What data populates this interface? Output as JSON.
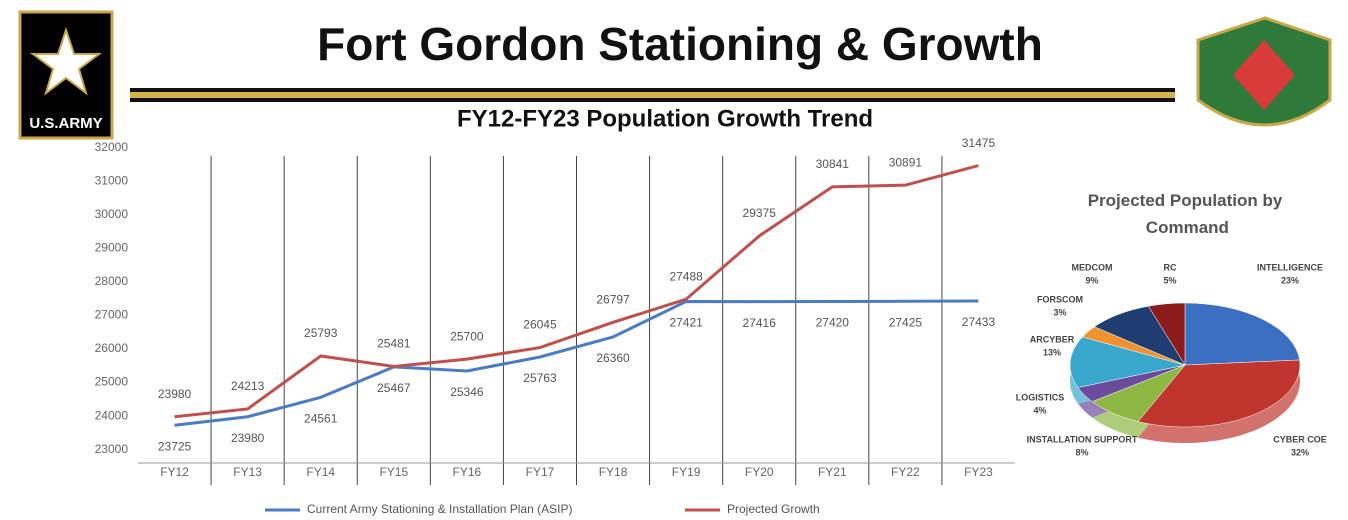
{
  "header": {
    "title": "Fort Gordon Stationing & Growth",
    "logo_text": "U.S.ARMY"
  },
  "chart_data": [
    {
      "type": "line",
      "title": "FY12-FY23 Population Growth Trend",
      "categories": [
        "FY12",
        "FY13",
        "FY14",
        "FY15",
        "FY16",
        "FY17",
        "FY18",
        "FY19",
        "FY20",
        "FY21",
        "FY22",
        "FY23"
      ],
      "series": [
        {
          "name": "Current Army Stationing & Installation Plan (ASIP)",
          "color": "#4a7cc4",
          "values": [
            23725,
            23980,
            24561,
            25467,
            25346,
            25763,
            26360,
            27421,
            27416,
            27420,
            27425,
            27433
          ]
        },
        {
          "name": "Projected Growth",
          "color": "#c0504d",
          "values": [
            23980,
            24213,
            25793,
            25481,
            25700,
            26045,
            26797,
            27488,
            29375,
            30841,
            30891,
            31475
          ]
        }
      ],
      "ylim": [
        22600,
        32000
      ],
      "yticks": [
        23000,
        24000,
        25000,
        26000,
        27000,
        28000,
        29000,
        30000,
        31000,
        32000
      ],
      "grid": false,
      "legend": "bottom"
    },
    {
      "type": "pie",
      "title": "Projected Population by Command",
      "categories": [
        "INTELLIGENCE",
        "CYBER COE",
        "INSTALLATION SUPPORT",
        "LOGISTICS",
        "ARCYBER",
        "FORSCOM",
        "MEDCOM",
        "RC"
      ],
      "values": [
        23,
        32,
        8,
        4,
        13,
        3,
        9,
        5
      ],
      "value_labels": [
        "23%",
        "32%",
        "8%",
        "4%",
        "13%",
        "3%",
        "9%",
        "5%"
      ],
      "colors": [
        "#3b6fc1",
        "#c0352e",
        "#8db843",
        "#6a4b9c",
        "#3aa8cc",
        "#f0922f",
        "#1f3d70",
        "#8c1c1c"
      ]
    }
  ]
}
